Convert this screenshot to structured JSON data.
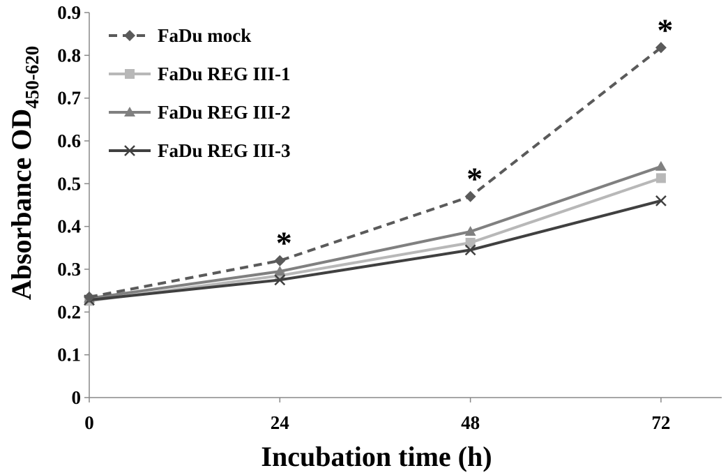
{
  "chart_data": {
    "type": "line",
    "xlabel": "Incubation time (h)",
    "ylabel": "Absorbance OD",
    "ylabel_subscript": "450-620",
    "x": [
      0,
      24,
      48,
      72
    ],
    "x_tick_labels": [
      "0",
      "24",
      "48",
      "72"
    ],
    "ylim": [
      0,
      0.9
    ],
    "y_ticks": [
      0,
      0.1,
      0.2,
      0.3,
      0.4,
      0.5,
      0.6,
      0.7,
      0.8,
      0.9
    ],
    "y_tick_labels": [
      "0",
      "0.1",
      "0.2",
      "0.3",
      "0.4",
      "0.5",
      "0.6",
      "0.7",
      "0.8",
      "0.9"
    ],
    "grid": false,
    "legend_position": "top-left",
    "series": [
      {
        "name": "FaDu mock",
        "values": [
          0.235,
          0.32,
          0.47,
          0.818
        ],
        "color": "#5a5a5a",
        "line_style": "dashed",
        "marker": "diamond"
      },
      {
        "name": "FaDu REG III-1",
        "values": [
          0.226,
          0.285,
          0.362,
          0.513
        ],
        "color": "#b8b8b8",
        "line_style": "solid",
        "marker": "square"
      },
      {
        "name": "FaDu REG III-2",
        "values": [
          0.232,
          0.295,
          0.388,
          0.54
        ],
        "color": "#808080",
        "line_style": "solid",
        "marker": "triangle"
      },
      {
        "name": "FaDu REG III-3",
        "values": [
          0.228,
          0.275,
          0.345,
          0.46
        ],
        "color": "#404040",
        "line_style": "solid",
        "marker": "x"
      }
    ],
    "annotations": [
      {
        "text": "*",
        "x": 24,
        "y": 0.32
      },
      {
        "text": "*",
        "x": 48,
        "y": 0.47
      },
      {
        "text": "*",
        "x": 72,
        "y": 0.818
      }
    ]
  }
}
